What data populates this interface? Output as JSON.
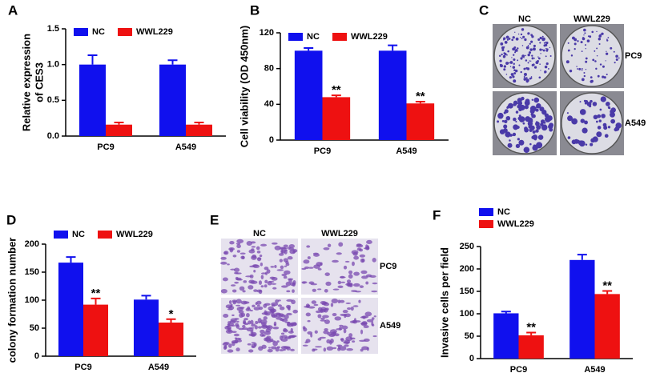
{
  "chart_data": [
    {
      "type": "bar",
      "panel": "A",
      "ylabel": [
        "Relative expression",
        "of CES3"
      ],
      "categories": [
        "PC9",
        "A549"
      ],
      "series": [
        {
          "name": "NC",
          "color": "#1010ee",
          "values": [
            1.0,
            1.0
          ],
          "errors": [
            0.13,
            0.06
          ]
        },
        {
          "name": "WWL229",
          "color": "#ee1111",
          "values": [
            0.16,
            0.16
          ],
          "errors": [
            0.03,
            0.03
          ]
        }
      ],
      "ylim": [
        0,
        1.5
      ],
      "yticks": [
        {
          "value": 0,
          "label": "0.0"
        },
        0.5,
        {
          "value": 1,
          "label": "1.0"
        },
        1.5
      ],
      "legend": "top"
    },
    {
      "type": "bar",
      "panel": "B",
      "ylabel": [
        "Cell viability (OD 450nm)"
      ],
      "categories": [
        "PC9",
        "A549"
      ],
      "series": [
        {
          "name": "NC",
          "color": "#1010ee",
          "values": [
            100,
            100
          ],
          "errors": [
            3,
            6
          ]
        },
        {
          "name": "WWL229",
          "color": "#ee1111",
          "values": [
            48,
            41
          ],
          "errors": [
            2,
            2
          ],
          "significance": [
            "**",
            "**"
          ]
        }
      ],
      "ylim": [
        0,
        120
      ],
      "yticks": [
        0,
        40,
        80,
        120
      ],
      "legend": "top"
    },
    {
      "type": "bar",
      "panel": "D",
      "ylabel": [
        "colony formation number"
      ],
      "categories": [
        "PC9",
        "A549"
      ],
      "series": [
        {
          "name": "NC",
          "color": "#1010ee",
          "values": [
            167,
            101
          ],
          "errors": [
            10,
            7
          ]
        },
        {
          "name": "WWL229",
          "color": "#ee1111",
          "values": [
            92,
            60
          ],
          "errors": [
            11,
            6
          ],
          "significance": [
            "**",
            "*"
          ]
        }
      ],
      "ylim": [
        0,
        200
      ],
      "yticks": [
        0,
        50,
        100,
        150,
        200
      ],
      "legend": "top"
    },
    {
      "type": "bar",
      "panel": "F",
      "ylabel": [
        "Invasive cells per field"
      ],
      "categories": [
        "PC9",
        "A549"
      ],
      "series": [
        {
          "name": "NC",
          "color": "#1010ee",
          "values": [
            101,
            220
          ],
          "errors": [
            4,
            12
          ]
        },
        {
          "name": "WWL229",
          "color": "#ee1111",
          "values": [
            52,
            144
          ],
          "errors": [
            6,
            7
          ],
          "significance": [
            "**",
            "**"
          ]
        }
      ],
      "ylim": [
        0,
        250
      ],
      "yticks": [
        0,
        50,
        100,
        150,
        200,
        250
      ],
      "legend": "top-left"
    }
  ],
  "image_panels": [
    {
      "panel": "C",
      "columns": [
        "NC",
        "WWL229"
      ],
      "rows": [
        "PC9",
        "A549"
      ]
    },
    {
      "panel": "E",
      "columns": [
        "NC",
        "WWL229"
      ],
      "rows": [
        "PC9",
        "A549"
      ]
    }
  ]
}
